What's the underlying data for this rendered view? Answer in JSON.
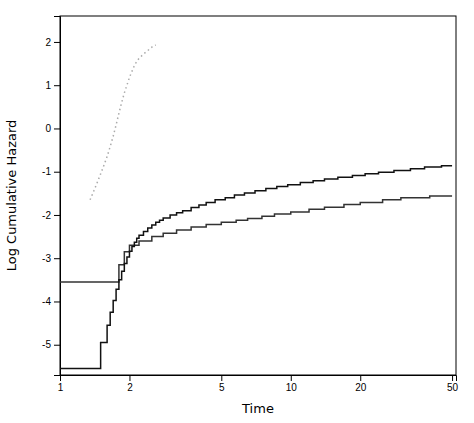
{
  "chart_data": {
    "type": "line",
    "xlabel": "Time",
    "ylabel": "Log Cumulative Hazard",
    "log": "x",
    "xlim": [
      1.0,
      52
    ],
    "ylim": [
      -5.7,
      2.6
    ],
    "xticks": [
      1,
      2,
      5,
      10,
      20,
      50
    ],
    "yticks": [
      -5,
      -4,
      -3,
      -2,
      -1,
      0,
      1,
      2
    ],
    "series": [
      {
        "color": "#aaaaaa",
        "line_style": "dotted",
        "x": [
          1.35,
          1.4,
          1.45,
          1.5,
          1.55,
          1.6,
          1.65,
          1.7,
          1.75,
          1.8,
          1.85,
          1.9,
          1.95,
          2.0,
          2.05,
          2.1,
          2.15,
          2.2,
          2.3,
          2.4,
          2.5,
          2.6
        ],
        "values": [
          -1.65,
          -1.45,
          -1.25,
          -1.05,
          -0.85,
          -0.65,
          -0.42,
          -0.18,
          0.08,
          0.35,
          0.6,
          0.82,
          1.0,
          1.18,
          1.32,
          1.45,
          1.55,
          1.62,
          1.72,
          1.8,
          1.88,
          1.93
        ]
      },
      {
        "color": "#333333",
        "line_style": "solid",
        "x": [
          1.0,
          1.8,
          1.8,
          1.9,
          1.9,
          2.0,
          2.0,
          2.2,
          2.2,
          2.5,
          2.5,
          2.8,
          2.8,
          3.2,
          3.2,
          3.7,
          3.7,
          4.3,
          4.3,
          5.0,
          5.0,
          5.8,
          5.8,
          6.5,
          6.5,
          7.5,
          7.5,
          8.5,
          8.5,
          10.0,
          10.0,
          12.0,
          12.0,
          14.0,
          14.0,
          17.0,
          17.0,
          20.0,
          20.0,
          25.0,
          25.0,
          30.0,
          30.0,
          40.0,
          40.0,
          50.0
        ],
        "values": [
          -3.55,
          -3.55,
          -3.15,
          -3.15,
          -2.85,
          -2.85,
          -2.7,
          -2.7,
          -2.6,
          -2.6,
          -2.5,
          -2.5,
          -2.42,
          -2.42,
          -2.35,
          -2.35,
          -2.28,
          -2.28,
          -2.22,
          -2.22,
          -2.17,
          -2.17,
          -2.12,
          -2.12,
          -2.08,
          -2.08,
          -2.03,
          -2.03,
          -1.98,
          -1.98,
          -1.93,
          -1.93,
          -1.87,
          -1.87,
          -1.82,
          -1.82,
          -1.76,
          -1.76,
          -1.71,
          -1.71,
          -1.65,
          -1.65,
          -1.6,
          -1.6,
          -1.56,
          -1.56
        ]
      },
      {
        "color": "#111111",
        "line_style": "solid",
        "x": [
          1.0,
          1.5,
          1.5,
          1.6,
          1.6,
          1.65,
          1.65,
          1.7,
          1.7,
          1.75,
          1.75,
          1.8,
          1.8,
          1.85,
          1.85,
          1.9,
          1.9,
          1.95,
          1.95,
          2.0,
          2.0,
          2.05,
          2.05,
          2.1,
          2.1,
          2.15,
          2.15,
          2.2,
          2.2,
          2.3,
          2.3,
          2.4,
          2.4,
          2.5,
          2.5,
          2.6,
          2.6,
          2.7,
          2.7,
          2.8,
          2.8,
          3.0,
          3.0,
          3.2,
          3.2,
          3.4,
          3.4,
          3.7,
          3.7,
          4.0,
          4.0,
          4.3,
          4.3,
          4.7,
          4.7,
          5.2,
          5.2,
          5.7,
          5.7,
          6.3,
          6.3,
          7.0,
          7.0,
          7.8,
          7.8,
          8.7,
          8.7,
          9.7,
          9.7,
          11.0,
          11.0,
          12.5,
          12.5,
          14.0,
          14.0,
          16.0,
          16.0,
          18.5,
          18.5,
          21.0,
          21.0,
          24.0,
          24.0,
          28.0,
          28.0,
          33.0,
          33.0,
          38.0,
          38.0,
          45.0,
          45.0,
          50.0
        ],
        "values": [
          -5.55,
          -5.55,
          -4.95,
          -4.95,
          -4.55,
          -4.55,
          -4.25,
          -4.25,
          -3.98,
          -3.98,
          -3.72,
          -3.72,
          -3.5,
          -3.5,
          -3.3,
          -3.3,
          -3.12,
          -3.12,
          -2.97,
          -2.97,
          -2.84,
          -2.84,
          -2.73,
          -2.73,
          -2.63,
          -2.63,
          -2.54,
          -2.54,
          -2.47,
          -2.47,
          -2.38,
          -2.38,
          -2.3,
          -2.3,
          -2.23,
          -2.23,
          -2.17,
          -2.17,
          -2.12,
          -2.12,
          -2.07,
          -2.07,
          -2.0,
          -2.0,
          -1.95,
          -1.95,
          -1.9,
          -1.9,
          -1.83,
          -1.83,
          -1.77,
          -1.77,
          -1.71,
          -1.71,
          -1.65,
          -1.65,
          -1.6,
          -1.6,
          -1.54,
          -1.54,
          -1.49,
          -1.49,
          -1.44,
          -1.44,
          -1.39,
          -1.39,
          -1.34,
          -1.34,
          -1.3,
          -1.3,
          -1.25,
          -1.25,
          -1.21,
          -1.21,
          -1.17,
          -1.17,
          -1.13,
          -1.13,
          -1.09,
          -1.09,
          -1.05,
          -1.05,
          -1.01,
          -1.01,
          -0.97,
          -0.97,
          -0.93,
          -0.93,
          -0.89,
          -0.89,
          -0.86,
          -0.86
        ]
      }
    ]
  }
}
